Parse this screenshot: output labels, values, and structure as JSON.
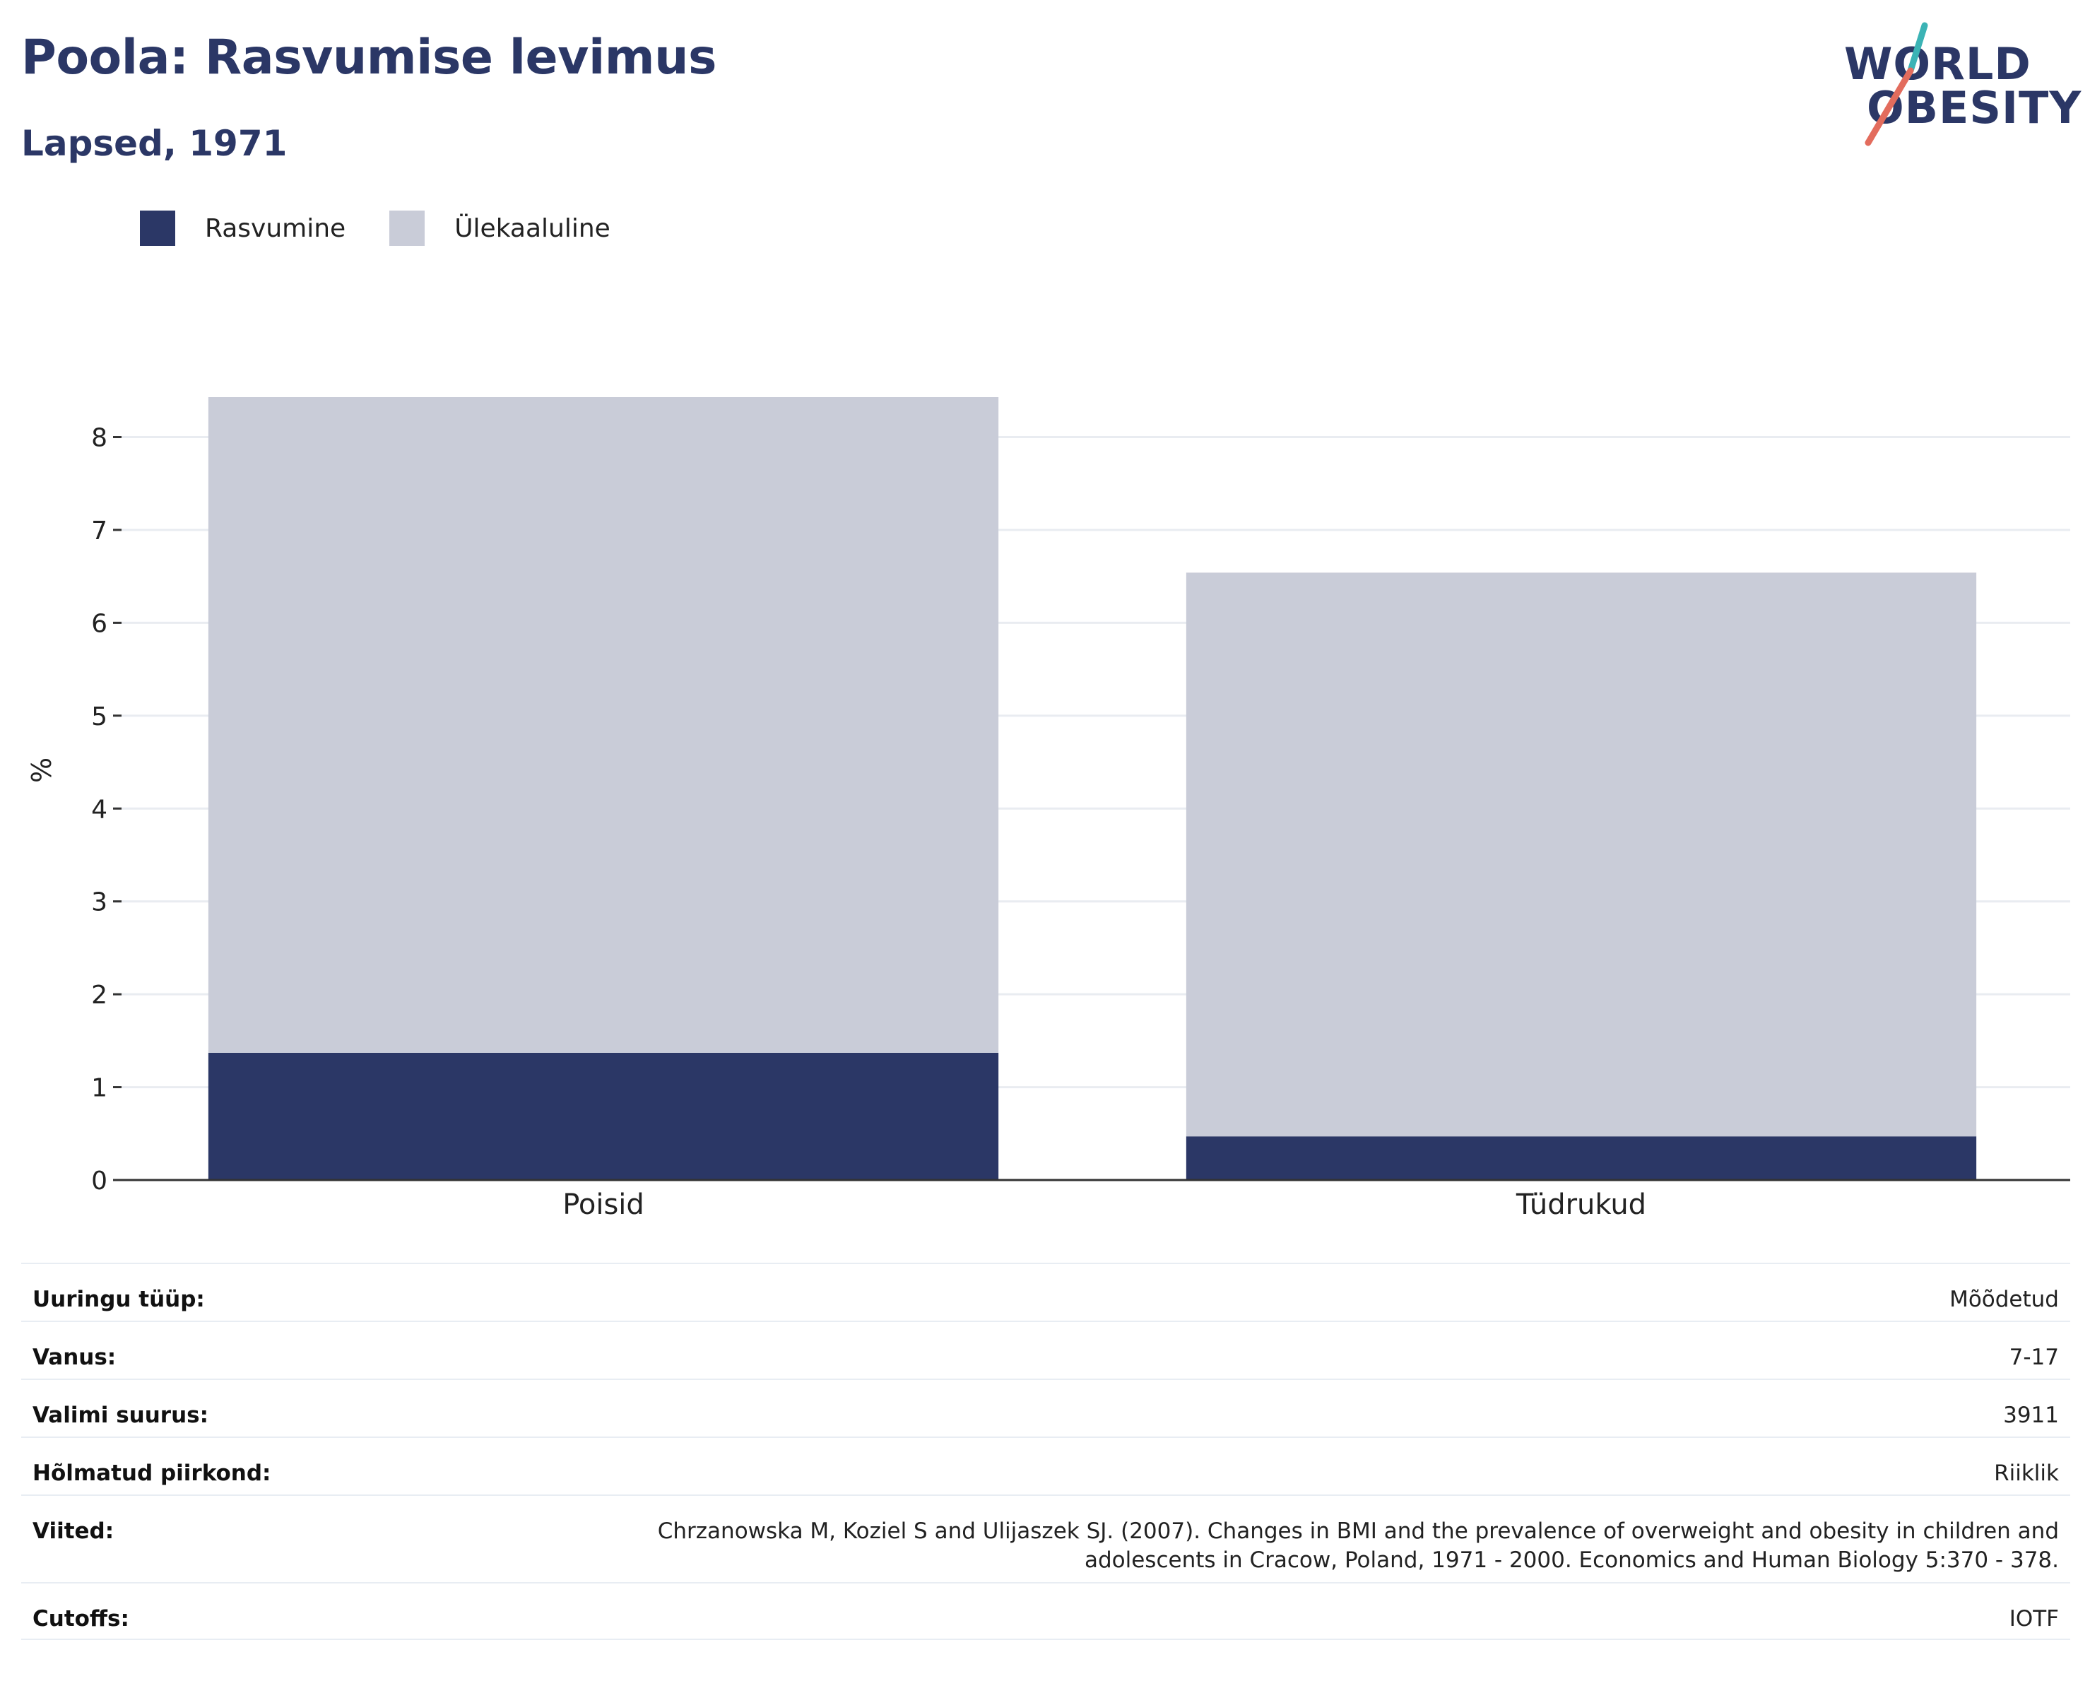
{
  "header": {
    "title": "Poola: Rasvumise levimus",
    "subtitle": "Lapsed, 1971"
  },
  "logo": {
    "line1": "WORLD",
    "line2": "OBESITY",
    "colors": {
      "text": "#2b3766",
      "slash_top": "#3bb3b5",
      "slash_bottom": "#e36c5d"
    }
  },
  "chart_data": {
    "type": "bar",
    "stacked": true,
    "categories": [
      "Poisid",
      "Tüdrukud"
    ],
    "series": [
      {
        "name": "Rasvumine",
        "color": "#2b3766",
        "values": [
          1.37,
          0.47
        ]
      },
      {
        "name": "Ülekaaluline",
        "color": "#c9ccd8",
        "values": [
          7.06,
          6.07
        ]
      }
    ],
    "ylabel": "%",
    "xlabel": "",
    "ylim": [
      0,
      8.43
    ],
    "yticks": [
      0,
      1,
      2,
      3,
      4,
      5,
      6,
      7,
      8
    ],
    "grid": true,
    "legend_position": "top-left"
  },
  "info": [
    {
      "label": "Uuringu tüüp:",
      "value": "Mõõdetud"
    },
    {
      "label": "Vanus:",
      "value": "7-17"
    },
    {
      "label": "Valimi suurus:",
      "value": "3911"
    },
    {
      "label": "Hõlmatud piirkond:",
      "value": "Riiklik"
    },
    {
      "label": "Viited:",
      "value": "Chrzanowska M, Koziel S and Ulijaszek SJ. (2007). Changes in BMI and the prevalence of overweight and obesity in children and adolescents in Cracow, Poland, 1971 - 2000. Economics and Human Biology 5:370 - 378."
    },
    {
      "label": "Cutoffs:",
      "value": "IOTF"
    }
  ]
}
